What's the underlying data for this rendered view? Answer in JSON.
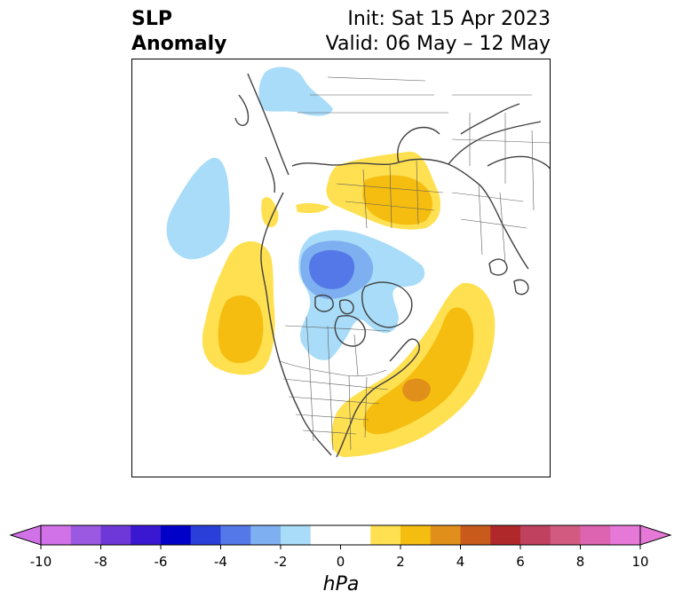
{
  "title": {
    "left_line1": "SLP",
    "left_line2": "Anomaly",
    "init": "Init: Sat 15 Apr 2023",
    "valid": "Valid: 06 May – 12 May"
  },
  "colorbar": {
    "ticks": [
      "-10",
      "-8",
      "-6",
      "-4",
      "-2",
      "0",
      "2",
      "4",
      "6",
      "8",
      "10"
    ],
    "units": "hPa",
    "range": [
      -10,
      10
    ],
    "interval_hPa": 1,
    "extend": "both",
    "colors": [
      "#d272e8",
      "#9b58e0",
      "#6e37d8",
      "#3a17d0",
      "#0000c8",
      "#2a3fd8",
      "#5478e8",
      "#7eaff0",
      "#a9dcf8",
      "#ffffff",
      "#ffffff",
      "#ffe050",
      "#f5bd10",
      "#e0901a",
      "#c85a1c",
      "#b0282a",
      "#c04060",
      "#d25a80",
      "#dc64b0",
      "#e678d8"
    ]
  },
  "map": {
    "projection": "north-polar stereographic",
    "anomalies": [
      {
        "region": "northwest North Atlantic (off US East Coast)",
        "sign": "positive",
        "max_level_hPa": 4
      },
      {
        "region": "northeast Pacific (off US/Canada West Coast)",
        "sign": "positive",
        "max_level_hPa": 3
      },
      {
        "region": "western Russia / Ural region",
        "sign": "positive",
        "max_level_hPa": 3
      },
      {
        "region": "western Alaska",
        "sign": "positive",
        "max_level_hPa": 1
      },
      {
        "region": "central Arctic / Canadian Archipelago",
        "sign": "negative",
        "max_level_hPa": -4
      },
      {
        "region": "central North Pacific",
        "sign": "negative",
        "max_level_hPa": -1
      },
      {
        "region": "Tibetan Plateau / Central Asia",
        "sign": "negative",
        "max_level_hPa": -1
      }
    ]
  }
}
